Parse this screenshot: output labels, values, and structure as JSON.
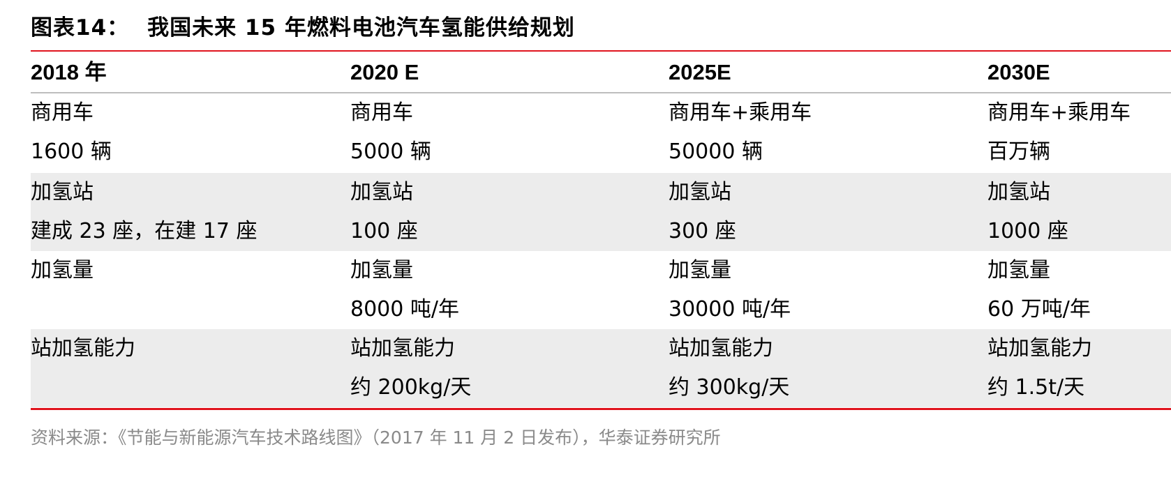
{
  "title": {
    "num": "图表14：",
    "text": "我国未来 15 年燃料电池汽车氢能供给规划"
  },
  "columns": [
    "2018 年",
    "2020 E",
    "2025E",
    "2030E"
  ],
  "rows": [
    {
      "line1": [
        "商用车",
        "商用车",
        "商用车+乘用车",
        "商用车+乘用车"
      ],
      "line2": [
        "1600 辆",
        "5000 辆",
        "50000 辆",
        "百万辆"
      ]
    },
    {
      "line1": [
        "加氢站",
        "加氢站",
        "加氢站",
        "加氢站"
      ],
      "line2": [
        "建成 23 座，在建 17 座",
        "100 座",
        "300 座",
        "1000 座"
      ]
    },
    {
      "line1": [
        "加氢量",
        "加氢量",
        "加氢量",
        "加氢量"
      ],
      "line2": [
        "",
        "8000 吨/年",
        "30000 吨/年",
        "60 万吨/年"
      ]
    },
    {
      "line1": [
        "站加氢能力",
        "站加氢能力",
        "站加氢能力",
        "站加氢能力"
      ],
      "line2": [
        "",
        "约 200kg/天",
        "约 300kg/天",
        "约 1.5t/天"
      ]
    }
  ],
  "source": "资料来源：《节能与新能源汽车技术路线图》（2017 年 11 月 2 日发布），华泰证券研究所"
}
